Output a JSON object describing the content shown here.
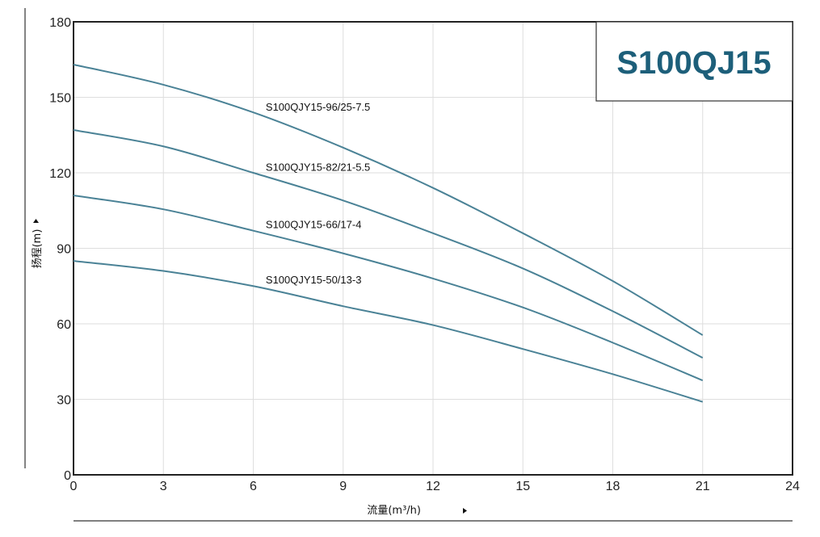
{
  "chart_data": {
    "type": "line",
    "title": "S100QJ15",
    "xlabel": "流量(m³/h)",
    "ylabel": "扬程(m)",
    "xlim": [
      0,
      24
    ],
    "ylim": [
      0,
      180
    ],
    "xticks": [
      0,
      3,
      6,
      9,
      12,
      15,
      18,
      21,
      24
    ],
    "yticks": [
      0,
      30,
      60,
      90,
      120,
      150,
      180
    ],
    "grid": true,
    "line_color": "#4a8296",
    "title_color": "#1d5f7a",
    "series": [
      {
        "name": "S100QJY15-96/25-7.5",
        "x": [
          0,
          3,
          6,
          9,
          12,
          15,
          18,
          21
        ],
        "y": [
          163,
          155,
          144,
          130,
          114,
          96,
          77,
          55.5
        ]
      },
      {
        "name": "S100QJY15-82/21-5.5",
        "x": [
          0,
          3,
          6,
          9,
          12,
          15,
          18,
          21
        ],
        "y": [
          137,
          130.5,
          120,
          109,
          96,
          82,
          65,
          46.5
        ]
      },
      {
        "name": "S100QJY15-66/17-4",
        "x": [
          0,
          3,
          6,
          9,
          12,
          15,
          18,
          21
        ],
        "y": [
          111,
          105.5,
          97,
          88,
          78,
          66.5,
          52.5,
          37.5
        ]
      },
      {
        "name": "S100QJY15-50/13-3",
        "x": [
          0,
          3,
          6,
          9,
          12,
          15,
          18,
          21
        ],
        "y": [
          85,
          81,
          75,
          67,
          59.5,
          50,
          40,
          29
        ]
      }
    ]
  }
}
